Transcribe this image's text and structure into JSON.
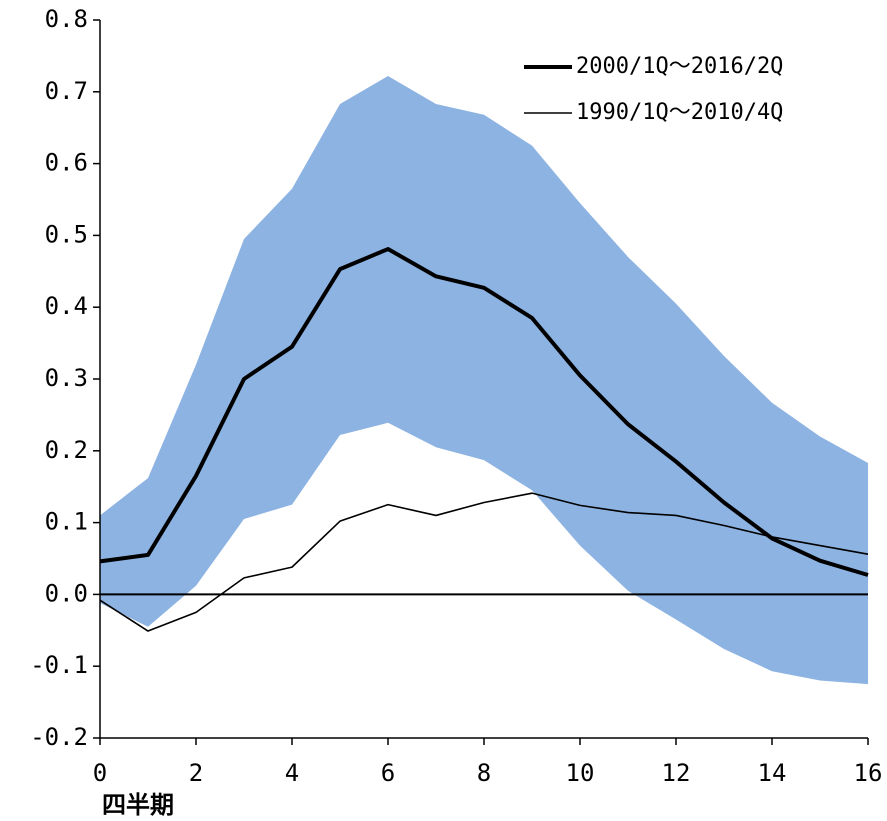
{
  "chart_data": {
    "type": "line",
    "x_label": "四半期",
    "x": [
      0,
      1,
      2,
      3,
      4,
      5,
      6,
      7,
      8,
      9,
      10,
      11,
      12,
      13,
      14,
      15,
      16
    ],
    "band": {
      "color": "#8db3e2",
      "upper": [
        0.11,
        0.162,
        0.32,
        0.495,
        0.565,
        0.683,
        0.722,
        0.683,
        0.668,
        0.625,
        0.545,
        0.47,
        0.405,
        0.332,
        0.267,
        0.22,
        0.183
      ],
      "lower": [
        -0.012,
        -0.045,
        0.012,
        0.105,
        0.125,
        0.222,
        0.239,
        0.205,
        0.187,
        0.145,
        0.068,
        0.005,
        -0.035,
        -0.076,
        -0.107,
        -0.12,
        -0.125
      ]
    },
    "series": [
      {
        "name": "2000/1Q～2016/2Q",
        "color": "#000000",
        "width": 4,
        "values": [
          0.046,
          0.055,
          0.165,
          0.3,
          0.345,
          0.453,
          0.481,
          0.443,
          0.427,
          0.385,
          0.305,
          0.237,
          0.185,
          0.128,
          0.078,
          0.047,
          0.027
        ]
      },
      {
        "name": "1990/1Q～2010/4Q",
        "color": "#000000",
        "width": 1.6,
        "values": [
          -0.008,
          -0.051,
          -0.025,
          0.023,
          0.038,
          0.102,
          0.125,
          0.11,
          0.128,
          0.141,
          0.124,
          0.114,
          0.11,
          0.096,
          0.08,
          0.068,
          0.056
        ]
      }
    ],
    "xlim": [
      0,
      16
    ],
    "xticks": [
      0,
      2,
      4,
      6,
      8,
      10,
      12,
      14,
      16
    ],
    "ylim": [
      -0.2,
      0.8
    ],
    "yticks": [
      -0.2,
      -0.1,
      {
        "value": 0,
        "label": "0.0"
      },
      0.1,
      0.2,
      0.3,
      0.4,
      0.5,
      0.6,
      0.7,
      0.8
    ],
    "legend": "upper right"
  }
}
